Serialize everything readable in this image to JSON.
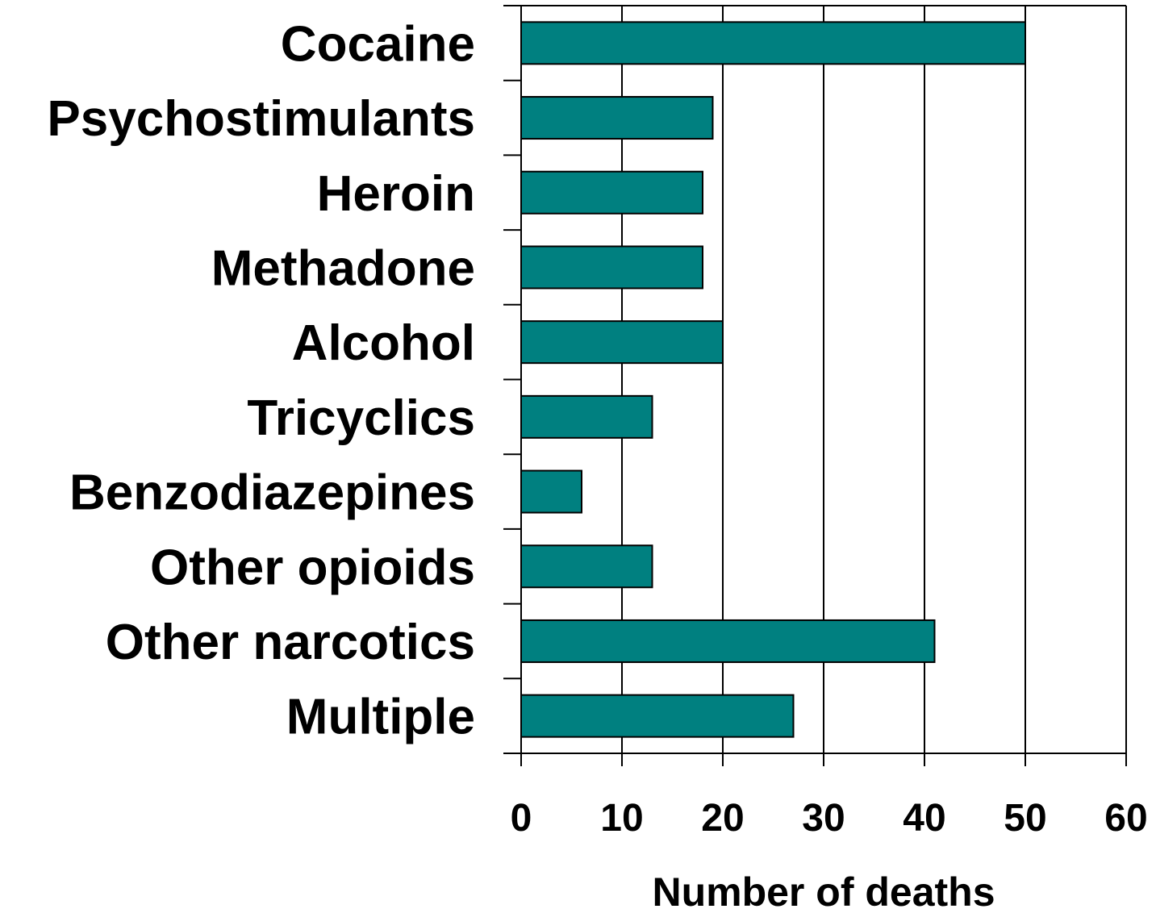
{
  "chart_data": {
    "type": "bar",
    "orientation": "horizontal",
    "categories": [
      "Cocaine",
      "Psychostimulants",
      "Heroin",
      "Methadone",
      "Alcohol",
      "Tricyclics",
      "Benzodiazepines",
      "Other opioids",
      "Other narcotics",
      "Multiple"
    ],
    "values": [
      50,
      19,
      18,
      18,
      20,
      13,
      6,
      13,
      41,
      27
    ],
    "xlabel": "Number of deaths",
    "ylabel": "",
    "xlim": [
      0,
      60
    ],
    "xticks": [
      "0",
      "10",
      "20",
      "30",
      "40",
      "50",
      "60"
    ],
    "grid": "vertical gridlines on",
    "legend": "none",
    "colors": {
      "bar_fill": "#008080",
      "bar_stroke": "#000000",
      "grid": "#000000",
      "text": "#000000"
    }
  }
}
